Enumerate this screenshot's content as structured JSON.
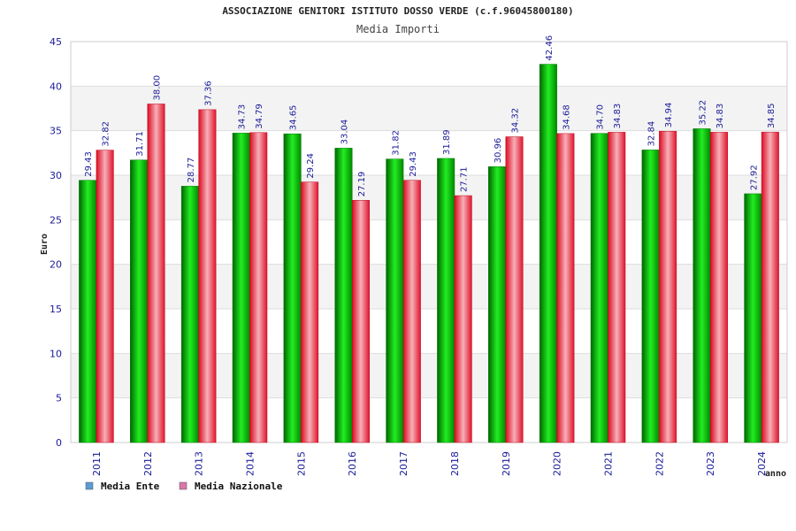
{
  "chart_data": {
    "type": "bar",
    "title": "ASSOCIAZIONE GENITORI ISTITUTO DOSSO VERDE (c.f.96045800180)",
    "subtitle": "Media Importi",
    "xlabel": "anno",
    "ylabel": "Euro",
    "ylim": [
      0,
      45
    ],
    "yticks": [
      0,
      5,
      10,
      15,
      20,
      25,
      30,
      35,
      40,
      45
    ],
    "grid": true,
    "legend_position": "bottom-left",
    "categories": [
      "2011",
      "2012",
      "2013",
      "2014",
      "2015",
      "2016",
      "2017",
      "2018",
      "2019",
      "2020",
      "2021",
      "2022",
      "2023",
      "2024"
    ],
    "series": [
      {
        "name": "Media Ente",
        "legend_color": "#5b9bd5",
        "bar_color": "#00bb00",
        "values": [
          29.43,
          31.71,
          28.77,
          34.73,
          34.65,
          33.04,
          31.82,
          31.89,
          30.96,
          42.46,
          34.7,
          32.84,
          35.22,
          27.92
        ],
        "labels": [
          "29.43",
          "31.71",
          "28.77",
          "34.73",
          "34.65",
          "33.04",
          "31.82",
          "31.89",
          "30.96",
          "42.46",
          "34.70",
          "32.84",
          "35.22",
          "27.92"
        ]
      },
      {
        "name": "Media Nazionale",
        "legend_color": "#d977a8",
        "bar_color": "#e8213a",
        "values": [
          32.82,
          38.0,
          37.36,
          34.79,
          29.24,
          27.19,
          29.43,
          27.71,
          34.32,
          34.68,
          34.83,
          34.94,
          34.83,
          34.85
        ],
        "labels": [
          "32.82",
          "38.00",
          "37.36",
          "34.79",
          "29.24",
          "27.19",
          "29.43",
          "27.71",
          "34.32",
          "34.68",
          "34.83",
          "34.94",
          "34.83",
          "34.85"
        ]
      }
    ]
  }
}
